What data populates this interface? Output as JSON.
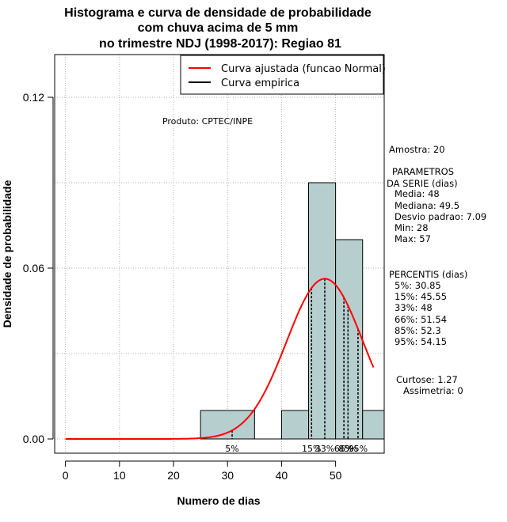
{
  "chart_data": {
    "type": "histogram",
    "title_lines": [
      "Histograma e curva de densidade de probabilidade",
      "com chuva acima de 5 mm",
      "no trimestre NDJ (1998-2017): Regiao 81"
    ],
    "xlabel": "Numero de dias",
    "ylabel": "Densidade de probabilidade",
    "xlim": [
      -2,
      59
    ],
    "ylim": [
      -0.005,
      0.135
    ],
    "x_ticks": [
      0,
      10,
      20,
      30,
      40,
      50
    ],
    "y_ticks": [
      0.0,
      0.06,
      0.12
    ],
    "y_tick_labels": [
      "0.00",
      "0.06",
      "0.12"
    ],
    "grid_x": [
      0,
      10,
      20,
      30,
      40,
      50
    ],
    "grid_y": [
      0.0,
      0.03,
      0.06,
      0.09,
      0.12
    ],
    "bins": [
      {
        "start": 25,
        "end": 35,
        "density": 0.01
      },
      {
        "start": 35,
        "end": 40,
        "density": 0.0
      },
      {
        "start": 40,
        "end": 45,
        "density": 0.01
      },
      {
        "start": 45,
        "end": 50,
        "density": 0.09
      },
      {
        "start": 50,
        "end": 55,
        "density": 0.07
      },
      {
        "start": 55,
        "end": 60,
        "density": 0.01
      }
    ],
    "fitted_normal": {
      "mean": 48,
      "sd": 7.09,
      "x_from": 0,
      "x_to": 57,
      "color": "#ff0000"
    },
    "bar_fill": "#b7cece",
    "percentiles": [
      {
        "label": "5%",
        "value": 30.85
      },
      {
        "label": "15%",
        "value": 45.55
      },
      {
        "label": "33%",
        "value": 48
      },
      {
        "label": "66%",
        "value": 51.54
      },
      {
        "label": "85%",
        "value": 52.3
      },
      {
        "label": "95%",
        "value": 54.15
      }
    ],
    "legend": [
      {
        "label": "Curva ajustada (funcao Normal)",
        "color": "#ff0000"
      },
      {
        "label": "Curva empirica",
        "color": "#000000"
      }
    ],
    "legend_position": "top-right",
    "annotation": "Produto: CPTEC/INPE"
  },
  "side_panel": {
    "amostra": "Amostra: 20",
    "parametros_lines": [
      "PARAMETROS",
      "DA SERIE (dias)",
      "Media: 48",
      "Mediana: 49.5",
      "Desvio padrao: 7.09",
      "Min: 28",
      "Max: 57"
    ],
    "percentis_lines": [
      "PERCENTIS (dias)",
      "5%: 30.85",
      "15%: 45.55",
      "33%: 48",
      "66%: 51.54",
      "85%: 52.3",
      "95%: 54.15"
    ],
    "curtose": "Curtose: 1.27",
    "assimetria": "Assimetria: 0"
  }
}
